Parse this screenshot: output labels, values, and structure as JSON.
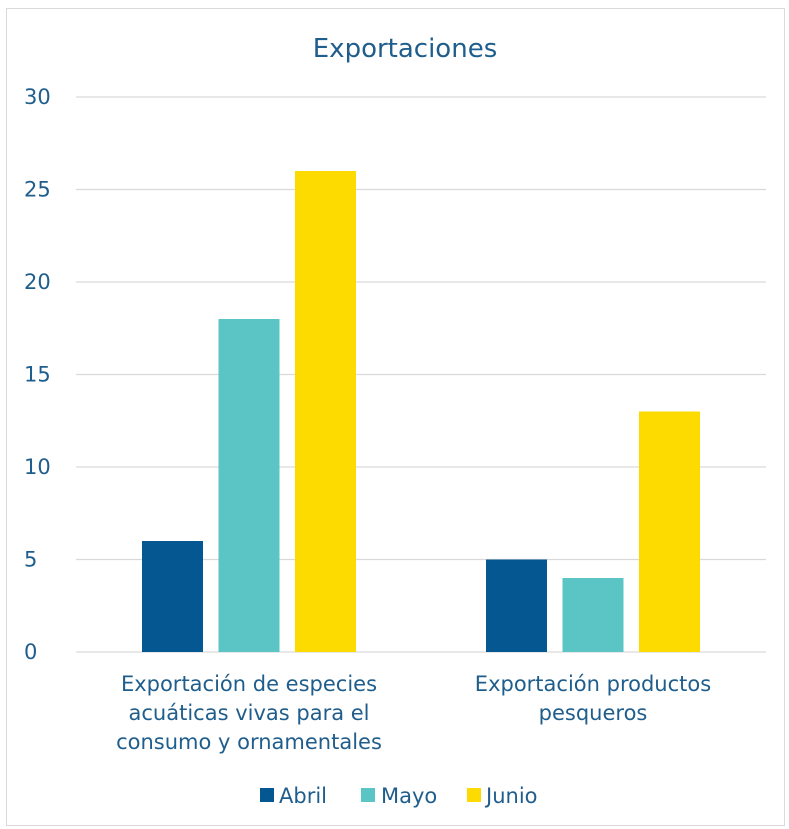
{
  "chart_data": {
    "type": "bar",
    "title": "Exportaciones",
    "categories": [
      [
        "Exportación de especies",
        "acuáticas vivas para el",
        "consumo y ornamentales"
      ],
      [
        "Exportación productos",
        "pesqueros"
      ]
    ],
    "series": [
      {
        "name": "Abril",
        "values": [
          6,
          5
        ],
        "color": "#045790"
      },
      {
        "name": "Mayo",
        "values": [
          18,
          4
        ],
        "color": "#5bc5c5"
      },
      {
        "name": "Junio",
        "values": [
          26,
          13
        ],
        "color": "#fedb00"
      }
    ],
    "ylim": [
      0,
      30
    ],
    "yticks": [
      0,
      5,
      10,
      15,
      20,
      25,
      30
    ],
    "grid": true,
    "legend": "bottom"
  }
}
